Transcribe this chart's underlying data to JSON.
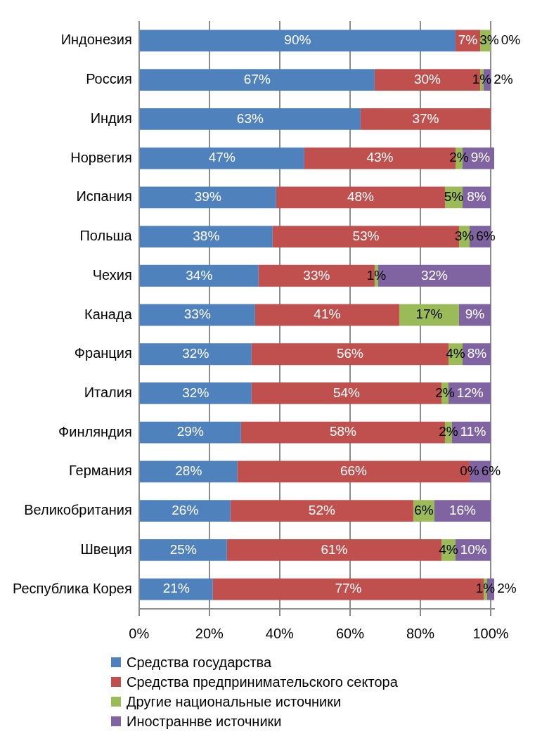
{
  "chart_data": {
    "type": "bar",
    "orientation": "horizontal",
    "stacked": true,
    "categories": [
      "Индонезия",
      "Россия",
      "Индия",
      "Норвегия",
      "Испания",
      "Польша",
      "Чехия",
      "Канада",
      "Франция",
      "Италия",
      "Финляндия",
      "Германия",
      "Великобритания",
      "Швеция",
      "Республика Корея"
    ],
    "series": [
      {
        "name": "Средства государства",
        "color": "#4f81bd",
        "values": [
          90,
          67,
          63,
          47,
          39,
          38,
          34,
          33,
          32,
          32,
          29,
          28,
          26,
          25,
          21
        ],
        "value_labels": [
          "90%",
          "67%",
          "63%",
          "47%",
          "39%",
          "38%",
          "34%",
          "33%",
          "32%",
          "32%",
          "29%",
          "28%",
          "26%",
          "25%",
          "21%"
        ]
      },
      {
        "name": "Средства предпринимательского сектора",
        "color": "#c0504d",
        "values": [
          7,
          30,
          37,
          43,
          48,
          53,
          33,
          41,
          56,
          54,
          58,
          66,
          52,
          61,
          77
        ],
        "value_labels": [
          "7%",
          "30%",
          "37%",
          "43%",
          "48%",
          "53%",
          "33%",
          "41%",
          "56%",
          "54%",
          "58%",
          "66%",
          "52%",
          "61%",
          "77%"
        ]
      },
      {
        "name": "Другие национальные источники",
        "color": "#9bbb59",
        "values": [
          3,
          1,
          null,
          2,
          5,
          3,
          1,
          17,
          4,
          2,
          2,
          0,
          6,
          4,
          1
        ],
        "value_labels": [
          "3%",
          "1%",
          null,
          "2%",
          "5%",
          "3%",
          "1%",
          "17%",
          "4%",
          "2%",
          "2%",
          "0%",
          "6%",
          "4%",
          "1%"
        ]
      },
      {
        "name": "Иностраннве источники",
        "color": "#8064a2",
        "values": [
          0,
          2,
          null,
          9,
          8,
          6,
          32,
          9,
          8,
          12,
          11,
          6,
          16,
          10,
          2
        ],
        "value_labels": [
          "0%",
          "2%",
          null,
          "9%",
          "8%",
          "6%",
          "32%",
          "9%",
          "8%",
          "12%",
          "11%",
          "6%",
          "16%",
          "10%",
          "2%"
        ]
      }
    ],
    "xlim": [
      0,
      101
    ],
    "xticks": [
      {
        "value": 0,
        "label": "0%"
      },
      {
        "value": 20,
        "label": "20%"
      },
      {
        "value": 40,
        "label": "40%"
      },
      {
        "value": 60,
        "label": "60%"
      },
      {
        "value": 80,
        "label": "80%"
      },
      {
        "value": 100,
        "label": "100%"
      }
    ],
    "grid": "x",
    "legend": "bottom"
  }
}
